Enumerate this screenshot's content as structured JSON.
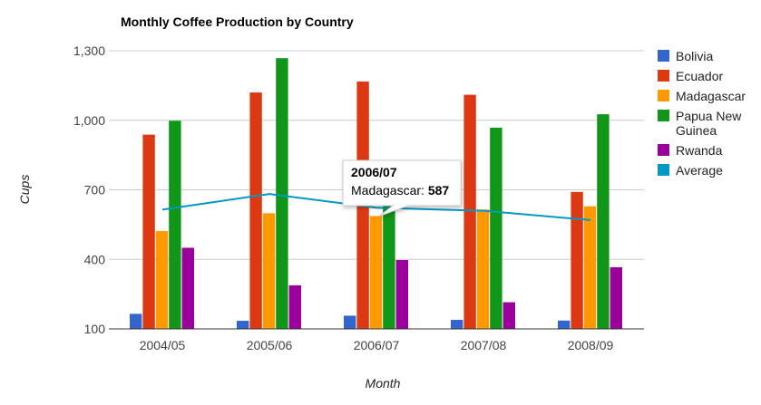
{
  "chart_data": {
    "type": "bar",
    "title": "Monthly Coffee Production by Country",
    "xlabel": "Month",
    "ylabel": "Cups",
    "ylim": [
      100,
      1300
    ],
    "yticks": [
      100,
      400,
      700,
      1000,
      1300
    ],
    "ytick_labels": [
      "100",
      "400",
      "700",
      "1,000",
      "1,300"
    ],
    "grid": true,
    "legend_position": "right",
    "categories": [
      "2004/05",
      "2005/06",
      "2006/07",
      "2007/08",
      "2008/09"
    ],
    "series": [
      {
        "name": "Bolivia",
        "type": "bar",
        "color": "#3366cc",
        "values": [
          165,
          135,
          157,
          139,
          136
        ]
      },
      {
        "name": "Ecuador",
        "type": "bar",
        "color": "#dc3912",
        "values": [
          938,
          1120,
          1167,
          1110,
          691
        ]
      },
      {
        "name": "Madagascar",
        "type": "bar",
        "color": "#ff9900",
        "values": [
          522,
          599,
          587,
          615,
          629
        ]
      },
      {
        "name": "Papua New Guinea",
        "type": "bar",
        "color": "#109618",
        "values": [
          998,
          1268,
          807,
          968,
          1026
        ]
      },
      {
        "name": "Rwanda",
        "type": "bar",
        "color": "#990099",
        "values": [
          450,
          288,
          397,
          215,
          366
        ]
      },
      {
        "name": "Average",
        "type": "line",
        "color": "#0099c6",
        "values": [
          614.6,
          682,
          623,
          609.4,
          569.6
        ]
      }
    ],
    "legend_labels": [
      [
        "Bolivia"
      ],
      [
        "Ecuador"
      ],
      [
        "Madagascar"
      ],
      [
        "Papua New",
        "Guinea"
      ],
      [
        "Rwanda"
      ],
      [
        "Average"
      ]
    ],
    "tooltip": {
      "title": "2006/07",
      "series_label": "Madagascar:",
      "value_text": "587",
      "category_index": 2,
      "series_index": 2
    }
  }
}
